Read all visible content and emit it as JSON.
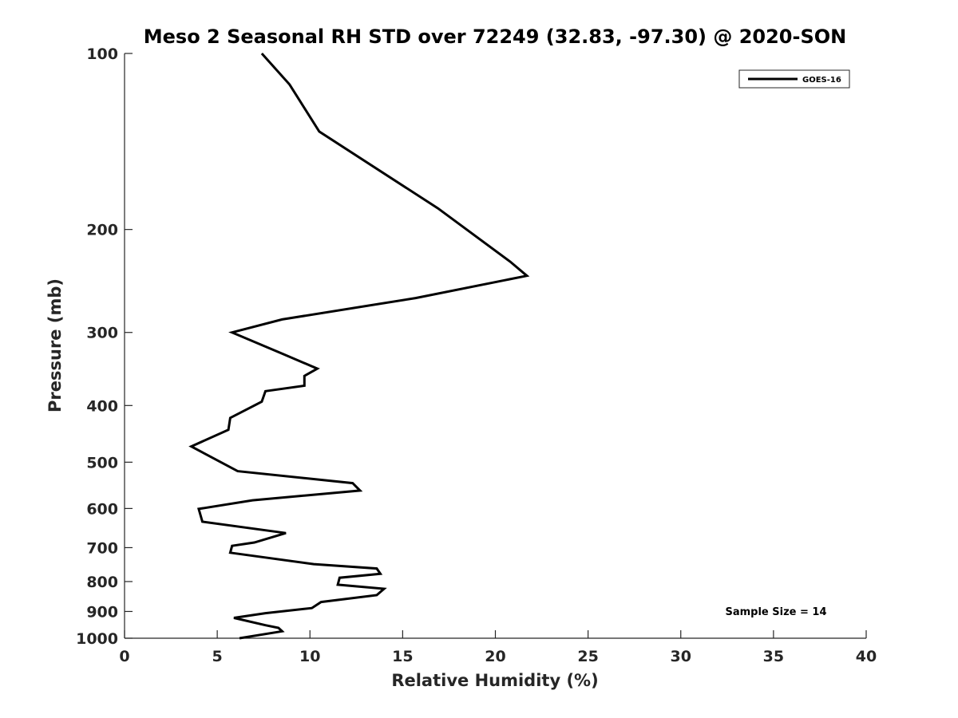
{
  "chart_data": {
    "type": "line",
    "title": "Meso 2 Seasonal RH STD over 72249 (32.83, -97.30) @ 2020-SON",
    "xlabel": "Relative Humidity (%)",
    "ylabel": "Pressure (mb)",
    "xlim": [
      0,
      40
    ],
    "ylim": [
      100,
      1000
    ],
    "yscale": "log",
    "y_reversed": true,
    "x_ticks": [
      0,
      5,
      10,
      15,
      20,
      25,
      30,
      35,
      40
    ],
    "x_tick_labels": [
      "0",
      "5",
      "10",
      "15",
      "20",
      "25",
      "30",
      "35",
      "40"
    ],
    "y_ticks": [
      100,
      200,
      300,
      400,
      500,
      600,
      700,
      800,
      900,
      1000
    ],
    "y_tick_labels": [
      "100",
      "200",
      "300",
      "400",
      "500",
      "600",
      "700",
      "800",
      "900",
      "1000"
    ],
    "grid": false,
    "legend_position": "top-right",
    "series": [
      {
        "name": "GOES-16",
        "color": "#000000",
        "x": [
          7.4,
          8.9,
          10.5,
          16.9,
          20.8,
          21.7,
          15.7,
          8.5,
          5.8,
          8.5,
          10.4,
          9.7,
          9.7,
          7.6,
          7.4,
          5.7,
          5.6,
          3.6,
          6.1,
          12.3,
          12.7,
          6.9,
          4.0,
          4.2,
          8.7,
          7.0,
          5.8,
          5.7,
          10.2,
          13.6,
          13.8,
          11.6,
          11.5,
          14.0,
          13.6,
          10.6,
          10.1,
          7.6,
          5.9,
          7.6,
          8.3,
          8.5,
          6.2
        ],
        "y": [
          100,
          113,
          136,
          184,
          227,
          240,
          262,
          285,
          300,
          326,
          346,
          356,
          370,
          378,
          394,
          420,
          440,
          470,
          518,
          543,
          559,
          581,
          601,
          632,
          661,
          686,
          695,
          714,
          747,
          760,
          776,
          788,
          810,
          823,
          844,
          867,
          888,
          906,
          923,
          950,
          960,
          973,
          1000
        ]
      }
    ],
    "annotation": "Sample Size = 14"
  }
}
